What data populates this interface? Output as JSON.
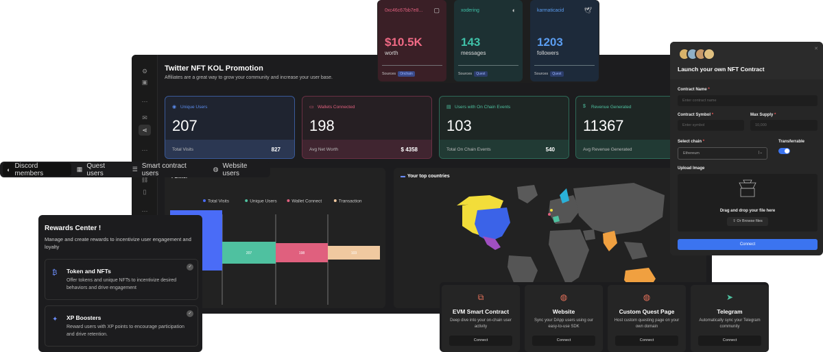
{
  "dashboard": {
    "title": "Twitter NFT KOL Promotion",
    "subtitle": "Affiliates are a great way to grow your community and increase your user base.",
    "rail_icons": [
      "settings-icon",
      "user-icon",
      "more-icon",
      "mail-icon",
      "share-icon",
      "more-icon",
      "link-icon",
      "file-icon",
      "more-icon"
    ],
    "metrics": [
      {
        "label": "Unique Users",
        "value": "207",
        "foot_label": "Total Visits",
        "foot_value": "827",
        "color": "#5b8def"
      },
      {
        "label": "Wallets Connected",
        "value": "198",
        "foot_label": "Avg Net Worth",
        "foot_value": "$ 4358",
        "color": "#e0607e"
      },
      {
        "label": "Users with On Chain Events",
        "value": "103",
        "foot_label": "Total On Chain Events",
        "foot_value": "540",
        "color": "#4fc1a0"
      },
      {
        "label": "Revenue Generated",
        "value": "11367",
        "foot_label": "Avg Revenue Generated",
        "foot_value": "",
        "color": "#4fc1a0"
      }
    ],
    "funnel": {
      "title": "Funnel"
    },
    "countries": {
      "title": "Your top countries"
    }
  },
  "chart_data": {
    "type": "area",
    "series": [
      {
        "name": "Total Visits",
        "color": "#4a6cf7"
      },
      {
        "name": "Unique Users",
        "color": "#4fc1a0"
      },
      {
        "name": "Wallet Connect",
        "color": "#e0607e"
      },
      {
        "name": "Transaction",
        "color": "#f0c9a0"
      }
    ],
    "values": [
      "",
      "207",
      "198",
      "103"
    ]
  },
  "wallet_cards": [
    {
      "id": "0xc46c67bb7e8...",
      "value": "$10.5K",
      "unit": "worth",
      "source_label": "Sources",
      "badge": "Onchain",
      "icon": "wallet-icon",
      "color": "#e0607e",
      "bg": "#3a1f26"
    },
    {
      "id": "xodering",
      "value": "143",
      "unit": "messages",
      "source_label": "Sources",
      "badge": "Quest",
      "icon": "discord-icon",
      "color": "#3fc1a8",
      "bg": "#1d3133"
    },
    {
      "id": "karmaticacid",
      "value": "1203",
      "unit": "followers",
      "source_label": "Sources",
      "badge": "Quest",
      "icon": "twitter-icon",
      "color": "#5b9df0",
      "bg": "#1d2a3a"
    }
  ],
  "tabs": [
    {
      "label": "Discord members",
      "icon": "discord-icon"
    },
    {
      "label": "Quest users",
      "icon": "quest-icon"
    },
    {
      "label": "Smart contract users",
      "icon": "database-icon"
    },
    {
      "label": "Website users",
      "icon": "globe-icon"
    }
  ],
  "rewards": {
    "title": "Rewards Center !",
    "description": "Manage and create rewards to incentivize user engagement and loyalty",
    "items": [
      {
        "title": "Token and NFTs",
        "description": "Offer tokens and unique NFTs to incentivize desired behaviors and drive engagement",
        "icon": "bitcoin-icon"
      },
      {
        "title": "XP Boosters",
        "description": "Reward users with XP points to encourage participation and drive retention.",
        "icon": "sparkle-icon"
      }
    ]
  },
  "nft": {
    "title": "Launch your own NFT Contract",
    "contract_name_label": "Contract Name",
    "contract_name_placeholder": "Enter contract name",
    "symbol_label": "Contract Symbol",
    "symbol_placeholder": "Enter symbol",
    "max_supply_label": "Max Supply",
    "max_supply_placeholder": "10,000",
    "chain_label": "Select chain",
    "chain_value": "Ethereum",
    "transferrable_label": "Transferrable",
    "upload_label": "Upload Image",
    "upload_text": "Drag and drop your file here",
    "browse_label": "Or Browse files",
    "connect_label": "Connect",
    "required": "*"
  },
  "integrations": [
    {
      "title": "EVM Smart Contract",
      "description": "Deep dive into your on-chain user activity",
      "button": "Connect",
      "icon": "contract-icon"
    },
    {
      "title": "Website",
      "description": "Sync your DApp users using our easy-to-use SDK",
      "button": "Connect",
      "icon": "globe-icon"
    },
    {
      "title": "Custom Quest Page",
      "description": "Host custom questing page on your own domain",
      "button": "Connect",
      "icon": "globe-icon"
    },
    {
      "title": "Telegram",
      "description": "Automatically sync your Telegram community",
      "button": "Connect",
      "icon": "telegram-icon"
    }
  ]
}
